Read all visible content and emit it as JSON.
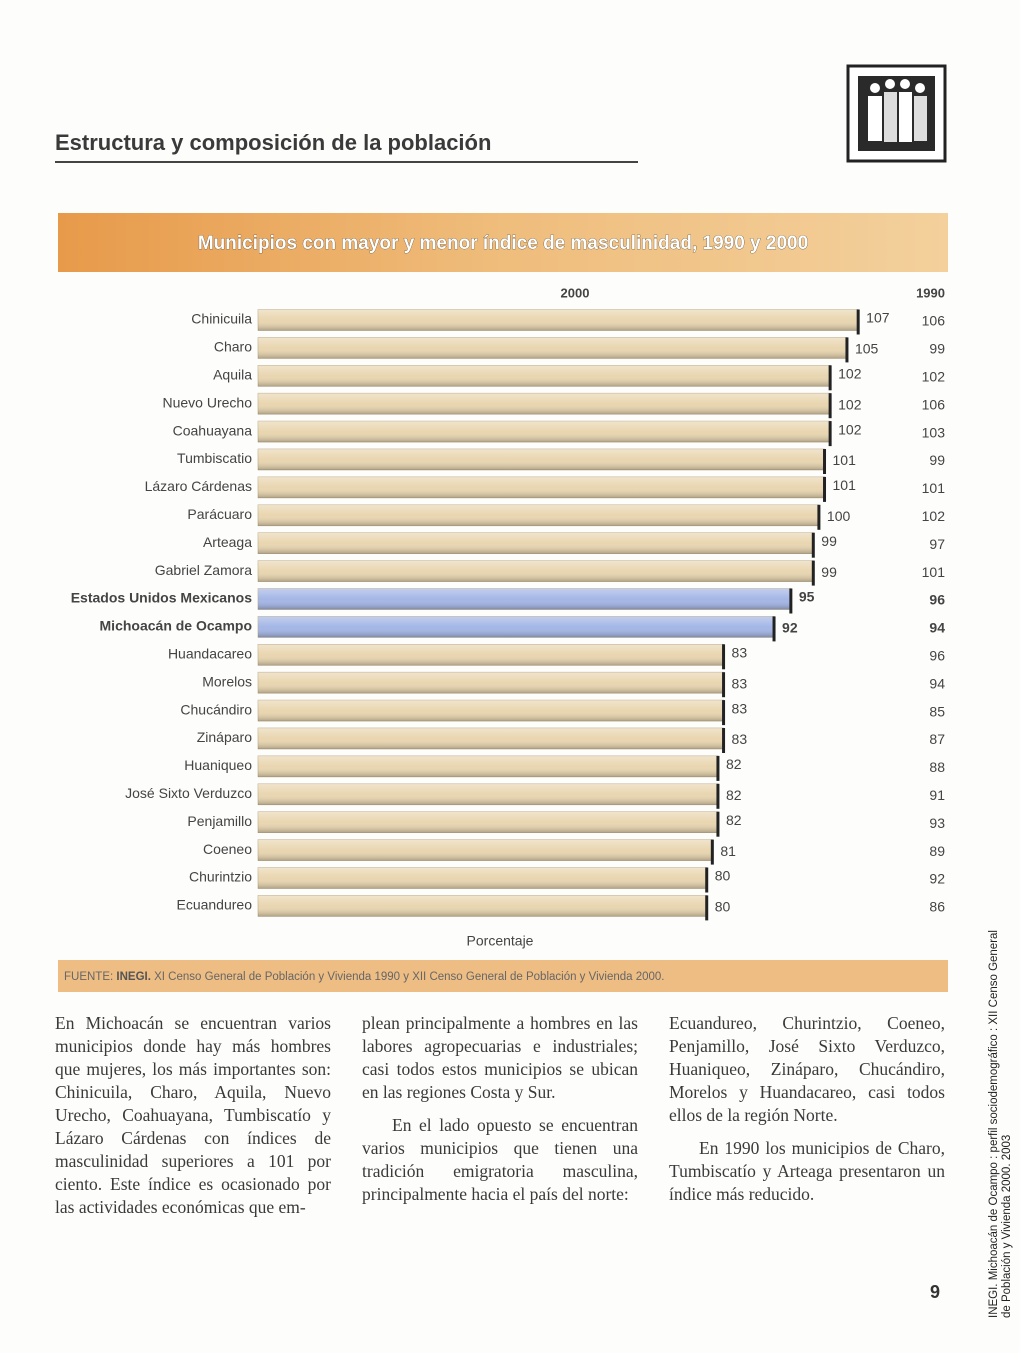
{
  "header": {
    "title": "Estructura y composición de la población"
  },
  "chart_data": {
    "type": "bar",
    "orientation": "horizontal",
    "title": "Municipios con mayor y menor índice de masculinidad, 1990 y 2000",
    "xlabel": "Porcentaje",
    "categories": [
      "Chinicuila",
      "Charo",
      "Aquila",
      "Nuevo Urecho",
      "Coahuayana",
      "Tumbiscatio",
      "Lázaro Cárdenas",
      "Parácuaro",
      "Arteaga",
      "Gabriel Zamora",
      "Estados Unidos Mexicanos",
      "Michoacán de Ocampo",
      "Huandacareo",
      "Morelos",
      "Chucándiro",
      "Zináparo",
      "Huaniqueo",
      "José Sixto Verduzco",
      "Penjamillo",
      "Coeneo",
      "Churintzio",
      "Ecuandureo"
    ],
    "series": [
      {
        "name": "2000",
        "color": "#e9d6b0",
        "bar_colors": [
          "#e9d6b0",
          "#e9d6b0",
          "#e9d6b0",
          "#e9d6b0",
          "#e9d6b0",
          "#e9d6b0",
          "#e9d6b0",
          "#e9d6b0",
          "#e9d6b0",
          "#e9d6b0",
          "#a4b6e6",
          "#a4b6e6",
          "#e9d6b0",
          "#e9d6b0",
          "#e9d6b0",
          "#e9d6b0",
          "#e9d6b0",
          "#e9d6b0",
          "#e9d6b0",
          "#e9d6b0",
          "#e9d6b0",
          "#e9d6b0"
        ],
        "values": [
          107,
          105,
          102,
          102,
          102,
          101,
          101,
          100,
          99,
          99,
          95,
          92,
          83,
          83,
          83,
          83,
          82,
          82,
          82,
          81,
          80,
          80
        ]
      },
      {
        "name": "1990",
        "values": [
          106,
          99,
          102,
          106,
          103,
          99,
          101,
          102,
          97,
          101,
          96,
          94,
          96,
          94,
          85,
          87,
          88,
          91,
          93,
          89,
          92,
          86
        ]
      }
    ],
    "xlim": [
      0,
      110
    ],
    "source": {
      "label": "FUENTE:",
      "org": "INEGI.",
      "text": "XI Censo General de Población y Vivienda 1990 y XII Censo General de Población y Vivienda 2000."
    }
  },
  "body": {
    "columns": [
      [
        "En Michoacán se encuentran varios municipios donde hay más hombres que mujeres, los más importantes son: Chinicuila, Charo, Aquila, Nuevo Urecho, Coahuayana, Tumbiscatío y Lázaro Cárdenas con índices de masculinidad superiores a 101 por ciento. Este índice es ocasionado por las actividades económicas que em-"
      ],
      [
        "plean principalmente a hombres en las labores agropecuarias e industriales; casi todos estos municipios se ubican en las regiones Costa y Sur.",
        "En el lado opuesto se encuentran varios municipios que tienen una tradición emigratoria masculina, principalmente hacia el país del norte:"
      ],
      [
        "Ecuandureo, Churintzio, Coeneo, Penjamillo, José Sixto Verduzco, Huaniqueo, Zináparo, Chucándiro, Morelos y Huandacareo, casi todos ellos de la región Norte.",
        "En 1990 los municipios de Charo, Tumbiscatío y Arteaga presentaron un índice más reducido."
      ]
    ]
  },
  "footer": {
    "page_number": "9",
    "side_note": [
      "INEGI. Michoacán de Ocampo : perfil sociodemográfico : XII Censo General",
      "de Población y Vivienda 2000. 2003"
    ]
  }
}
